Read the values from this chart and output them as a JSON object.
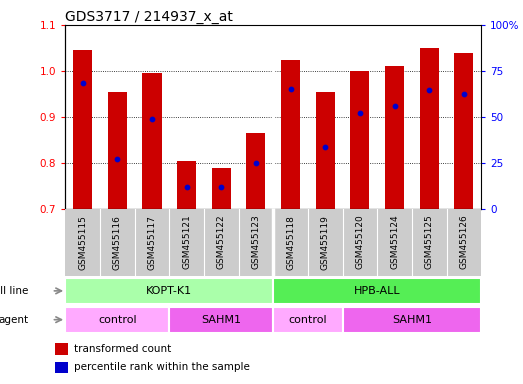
{
  "title": "GDS3717 / 214937_x_at",
  "samples": [
    "GSM455115",
    "GSM455116",
    "GSM455117",
    "GSM455121",
    "GSM455122",
    "GSM455123",
    "GSM455118",
    "GSM455119",
    "GSM455120",
    "GSM455124",
    "GSM455125",
    "GSM455126"
  ],
  "bar_heights": [
    1.045,
    0.955,
    0.995,
    0.805,
    0.79,
    0.865,
    1.025,
    0.955,
    1.0,
    1.01,
    1.05,
    1.04
  ],
  "blue_dot_y": [
    0.975,
    0.81,
    0.895,
    0.748,
    0.748,
    0.8,
    0.96,
    0.835,
    0.91,
    0.925,
    0.958,
    0.95
  ],
  "bar_bottom": 0.7,
  "ylim_left": [
    0.7,
    1.1
  ],
  "ylim_right": [
    0,
    100
  ],
  "yticks_left": [
    0.7,
    0.8,
    0.9,
    1.0,
    1.1
  ],
  "yticks_right": [
    0,
    25,
    50,
    75,
    100
  ],
  "bar_color": "#cc0000",
  "dot_color": "#0000cc",
  "bar_width": 0.55,
  "cell_line_groups": [
    {
      "label": "KOPT-K1",
      "start": 0,
      "end": 6,
      "color": "#aaffaa"
    },
    {
      "label": "HPB-ALL",
      "start": 6,
      "end": 12,
      "color": "#55ee55"
    }
  ],
  "agent_groups": [
    {
      "label": "control",
      "start": 0,
      "end": 3,
      "color": "#ffaaff"
    },
    {
      "label": "SAHM1",
      "start": 3,
      "end": 6,
      "color": "#ee66ee"
    },
    {
      "label": "control",
      "start": 6,
      "end": 8,
      "color": "#ffaaff"
    },
    {
      "label": "SAHM1",
      "start": 8,
      "end": 12,
      "color": "#ee66ee"
    }
  ],
  "legend_red_label": "transformed count",
  "legend_blue_label": "percentile rank within the sample",
  "cell_line_label": "cell line",
  "agent_label": "agent",
  "tick_fontsize": 7.5,
  "title_fontsize": 10,
  "xtick_bg_color": "#cccccc"
}
